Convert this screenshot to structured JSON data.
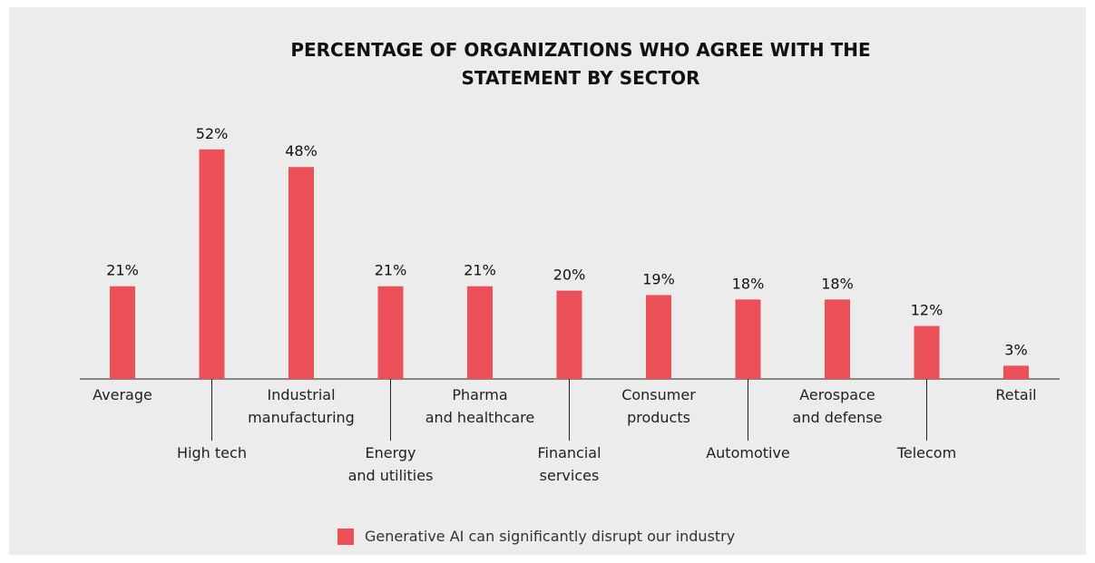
{
  "chart_data": {
    "type": "bar",
    "title": "PERCENTAGE OF ORGANIZATIONS WHO AGREE WITH THE\nSTATEMENT BY SECTOR",
    "categories": [
      "Average",
      "High tech",
      "Industrial\nmanufacturing",
      "Energy\nand utilities",
      "Pharma\nand healthcare",
      "Financial\nservices",
      "Consumer\nproducts",
      "Automotive",
      "Aerospace\nand defense",
      "Telecom",
      "Retail"
    ],
    "series": [
      {
        "name": "Generative AI can significantly disrupt our industry",
        "color": "#eb5059",
        "values": [
          21,
          52,
          48,
          21,
          21,
          20,
          19,
          18,
          18,
          12,
          3
        ],
        "value_labels": [
          "21%",
          "52%",
          "48%",
          "21%",
          "21%",
          "20%",
          "19%",
          "18%",
          "18%",
          "12%",
          "3%"
        ]
      }
    ],
    "legend": "bottom"
  }
}
